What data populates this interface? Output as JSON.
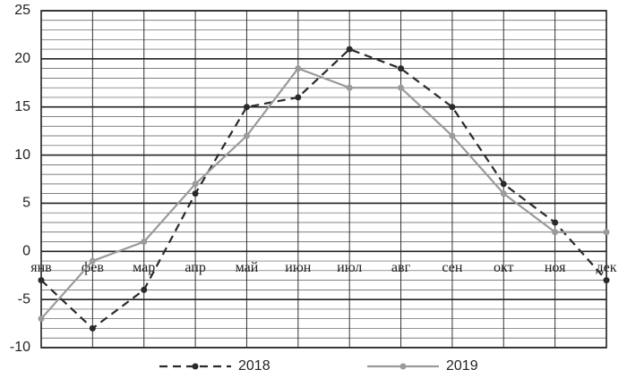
{
  "chart_data": {
    "type": "line",
    "categories": [
      "янв",
      "фев",
      "мар",
      "апр",
      "май",
      "июн",
      "июл",
      "авг",
      "сен",
      "окт",
      "ноя",
      "дек"
    ],
    "series": [
      {
        "name": "2018",
        "color": "#2a2a2a",
        "dashed": true,
        "values": [
          -3,
          -8,
          -4,
          6,
          15,
          16,
          21,
          19,
          15,
          7,
          3,
          -3
        ]
      },
      {
        "name": "2019",
        "color": "#9a9a9a",
        "dashed": false,
        "values": [
          -7,
          -1,
          1,
          7,
          12,
          19,
          17,
          17,
          12,
          6,
          2,
          2
        ]
      }
    ],
    "ylim": [
      -10,
      25
    ],
    "yticks": [
      -10,
      -5,
      0,
      5,
      10,
      15,
      20,
      25
    ],
    "minor_yticks": [
      -9,
      -8,
      -7,
      -6,
      -4,
      -3,
      -2,
      -1,
      1,
      2,
      3,
      4,
      6,
      7,
      8,
      9,
      11,
      12,
      13,
      14,
      16,
      17,
      18,
      19,
      21,
      22,
      23,
      24
    ],
    "grid": true
  }
}
